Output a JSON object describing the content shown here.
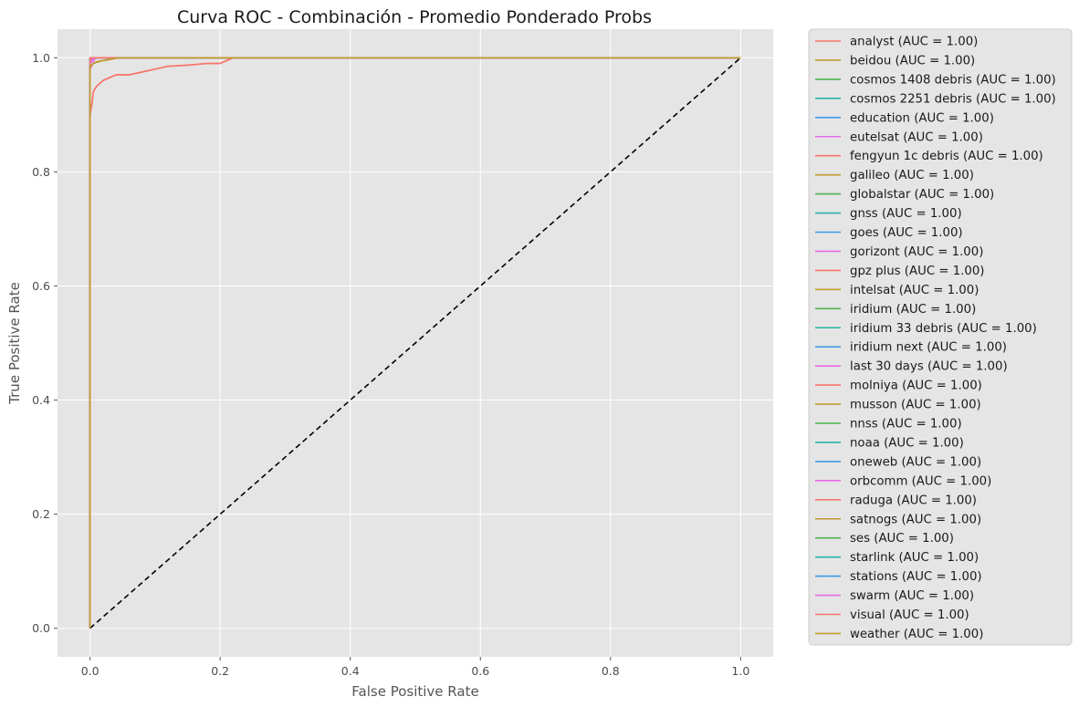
{
  "chart_data": {
    "type": "line",
    "title": "Curva ROC - Combinación - Promedio Ponderado Probs",
    "xlabel": "False Positive Rate",
    "ylabel": "True Positive Rate",
    "xlim": [
      -0.05,
      1.05
    ],
    "ylim": [
      -0.05,
      1.05
    ],
    "xticks": [
      0.0,
      0.2,
      0.4,
      0.6,
      0.8,
      1.0
    ],
    "yticks": [
      0.0,
      0.2,
      0.4,
      0.6,
      0.8,
      1.0
    ],
    "xtick_labels": [
      "0.0",
      "0.2",
      "0.4",
      "0.6",
      "0.8",
      "1.0"
    ],
    "ytick_labels": [
      "0.0",
      "0.2",
      "0.4",
      "0.6",
      "0.8",
      "1.0"
    ],
    "grid": true,
    "background": "#e5e5e5",
    "legend_position": "outside-right",
    "diagonal": {
      "x": [
        0,
        1
      ],
      "y": [
        0,
        1
      ],
      "style": "dashed",
      "color": "#000000"
    },
    "series": [
      {
        "name": "analyst (AUC = 1.00)",
        "color": "#f8766d",
        "x": [
          0,
          0,
          0.003,
          0.005,
          0.01,
          0.015,
          0.02,
          0.03,
          0.04,
          0.06,
          0.08,
          0.1,
          0.12,
          0.15,
          0.18,
          0.2,
          0.21,
          0.22,
          1.0
        ],
        "y": [
          0,
          0.9,
          0.92,
          0.94,
          0.95,
          0.955,
          0.96,
          0.965,
          0.97,
          0.97,
          0.975,
          0.98,
          0.985,
          0.987,
          0.99,
          0.99,
          0.995,
          1.0,
          1.0
        ]
      },
      {
        "name": "beidou (AUC = 1.00)",
        "color": "#bf9b30",
        "x": [
          0,
          0,
          0.005,
          0.01,
          0.02,
          0.03,
          0.045,
          1.0
        ],
        "y": [
          0,
          0.98,
          0.99,
          0.993,
          0.995,
          0.997,
          1.0,
          1.0
        ]
      },
      {
        "name": "cosmos 1408 debris (AUC = 1.00)",
        "color": "#4db34d",
        "x": [
          0,
          0,
          1.0
        ],
        "y": [
          0,
          1.0,
          1.0
        ]
      },
      {
        "name": "cosmos 2251 debris (AUC = 1.00)",
        "color": "#2cb3a6",
        "x": [
          0,
          0,
          1.0
        ],
        "y": [
          0,
          1.0,
          1.0
        ]
      },
      {
        "name": "education (AUC = 1.00)",
        "color": "#3d9be9",
        "x": [
          0,
          0,
          1.0
        ],
        "y": [
          0,
          1.0,
          1.0
        ]
      },
      {
        "name": "eutelsat (AUC = 1.00)",
        "color": "#e86ce8",
        "x": [
          0,
          0,
          0.003,
          1.0
        ],
        "y": [
          0,
          0.99,
          1.0,
          1.0
        ]
      },
      {
        "name": "fengyun 1c debris (AUC = 1.00)",
        "color": "#f8766d",
        "x": [
          0,
          0,
          1.0
        ],
        "y": [
          0,
          1.0,
          1.0
        ]
      },
      {
        "name": "galileo (AUC = 1.00)",
        "color": "#bf9b30",
        "x": [
          0,
          0,
          1.0
        ],
        "y": [
          0,
          1.0,
          1.0
        ]
      },
      {
        "name": "globalstar (AUC = 1.00)",
        "color": "#4db34d",
        "x": [
          0,
          0,
          1.0
        ],
        "y": [
          0,
          1.0,
          1.0
        ]
      },
      {
        "name": "gnss (AUC = 1.00)",
        "color": "#2cb3a6",
        "x": [
          0,
          0,
          1.0
        ],
        "y": [
          0,
          1.0,
          1.0
        ]
      },
      {
        "name": "goes (AUC = 1.00)",
        "color": "#3d9be9",
        "x": [
          0,
          0,
          1.0
        ],
        "y": [
          0,
          1.0,
          1.0
        ]
      },
      {
        "name": "gorizont (AUC = 1.00)",
        "color": "#e86ce8",
        "x": [
          0,
          0,
          0.004,
          0.008,
          1.0
        ],
        "y": [
          0,
          0.98,
          0.99,
          1.0,
          1.0
        ]
      },
      {
        "name": "gpz plus (AUC = 1.00)",
        "color": "#f8766d",
        "x": [
          0,
          0,
          1.0
        ],
        "y": [
          0,
          1.0,
          1.0
        ]
      },
      {
        "name": "intelsat (AUC = 1.00)",
        "color": "#bf9b30",
        "x": [
          0,
          0,
          0.002,
          1.0
        ],
        "y": [
          0,
          0.995,
          1.0,
          1.0
        ]
      },
      {
        "name": "iridium (AUC = 1.00)",
        "color": "#4db34d",
        "x": [
          0,
          0,
          1.0
        ],
        "y": [
          0,
          1.0,
          1.0
        ]
      },
      {
        "name": "iridium 33 debris (AUC = 1.00)",
        "color": "#2cb3a6",
        "x": [
          0,
          0,
          1.0
        ],
        "y": [
          0,
          1.0,
          1.0
        ]
      },
      {
        "name": "iridium next (AUC = 1.00)",
        "color": "#3d9be9",
        "x": [
          0,
          0,
          1.0
        ],
        "y": [
          0,
          1.0,
          1.0
        ]
      },
      {
        "name": "last 30 days (AUC = 1.00)",
        "color": "#e86ce8",
        "x": [
          0,
          0,
          0.006,
          1.0
        ],
        "y": [
          0,
          0.99,
          1.0,
          1.0
        ]
      },
      {
        "name": "molniya (AUC = 1.00)",
        "color": "#f8766d",
        "x": [
          0,
          0,
          1.0
        ],
        "y": [
          0,
          1.0,
          1.0
        ]
      },
      {
        "name": "musson (AUC = 1.00)",
        "color": "#bf9b30",
        "x": [
          0,
          0,
          1.0
        ],
        "y": [
          0,
          1.0,
          1.0
        ]
      },
      {
        "name": "nnss (AUC = 1.00)",
        "color": "#4db34d",
        "x": [
          0,
          0,
          1.0
        ],
        "y": [
          0,
          1.0,
          1.0
        ]
      },
      {
        "name": "noaa (AUC = 1.00)",
        "color": "#2cb3a6",
        "x": [
          0,
          0,
          1.0
        ],
        "y": [
          0,
          1.0,
          1.0
        ]
      },
      {
        "name": "oneweb (AUC = 1.00)",
        "color": "#3d9be9",
        "x": [
          0,
          0,
          1.0
        ],
        "y": [
          0,
          1.0,
          1.0
        ]
      },
      {
        "name": "orbcomm (AUC = 1.00)",
        "color": "#e86ce8",
        "x": [
          0,
          0,
          1.0
        ],
        "y": [
          0,
          1.0,
          1.0
        ]
      },
      {
        "name": "raduga (AUC = 1.00)",
        "color": "#f8766d",
        "x": [
          0,
          0,
          1.0
        ],
        "y": [
          0,
          1.0,
          1.0
        ]
      },
      {
        "name": "satnogs (AUC = 1.00)",
        "color": "#bf9b30",
        "x": [
          0,
          0,
          1.0
        ],
        "y": [
          0,
          1.0,
          1.0
        ]
      },
      {
        "name": "ses (AUC = 1.00)",
        "color": "#4db34d",
        "x": [
          0,
          0,
          1.0
        ],
        "y": [
          0,
          1.0,
          1.0
        ]
      },
      {
        "name": "starlink (AUC = 1.00)",
        "color": "#2cb3a6",
        "x": [
          0,
          0,
          1.0
        ],
        "y": [
          0,
          1.0,
          1.0
        ]
      },
      {
        "name": "stations (AUC = 1.00)",
        "color": "#3d9be9",
        "x": [
          0,
          0,
          1.0
        ],
        "y": [
          0,
          1.0,
          1.0
        ]
      },
      {
        "name": "swarm (AUC = 1.00)",
        "color": "#e86ce8",
        "x": [
          0,
          0,
          1.0
        ],
        "y": [
          0,
          1.0,
          1.0
        ]
      },
      {
        "name": "visual (AUC = 1.00)",
        "color": "#f8766d",
        "x": [
          0,
          0,
          1.0
        ],
        "y": [
          0,
          1.0,
          1.0
        ]
      },
      {
        "name": "weather (AUC = 1.00)",
        "color": "#bf9b30",
        "x": [
          0,
          0,
          0.005,
          0.01,
          0.02,
          0.035,
          0.045,
          1.0
        ],
        "y": [
          0,
          0.985,
          0.99,
          0.992,
          0.995,
          0.998,
          1.0,
          1.0
        ]
      }
    ]
  }
}
